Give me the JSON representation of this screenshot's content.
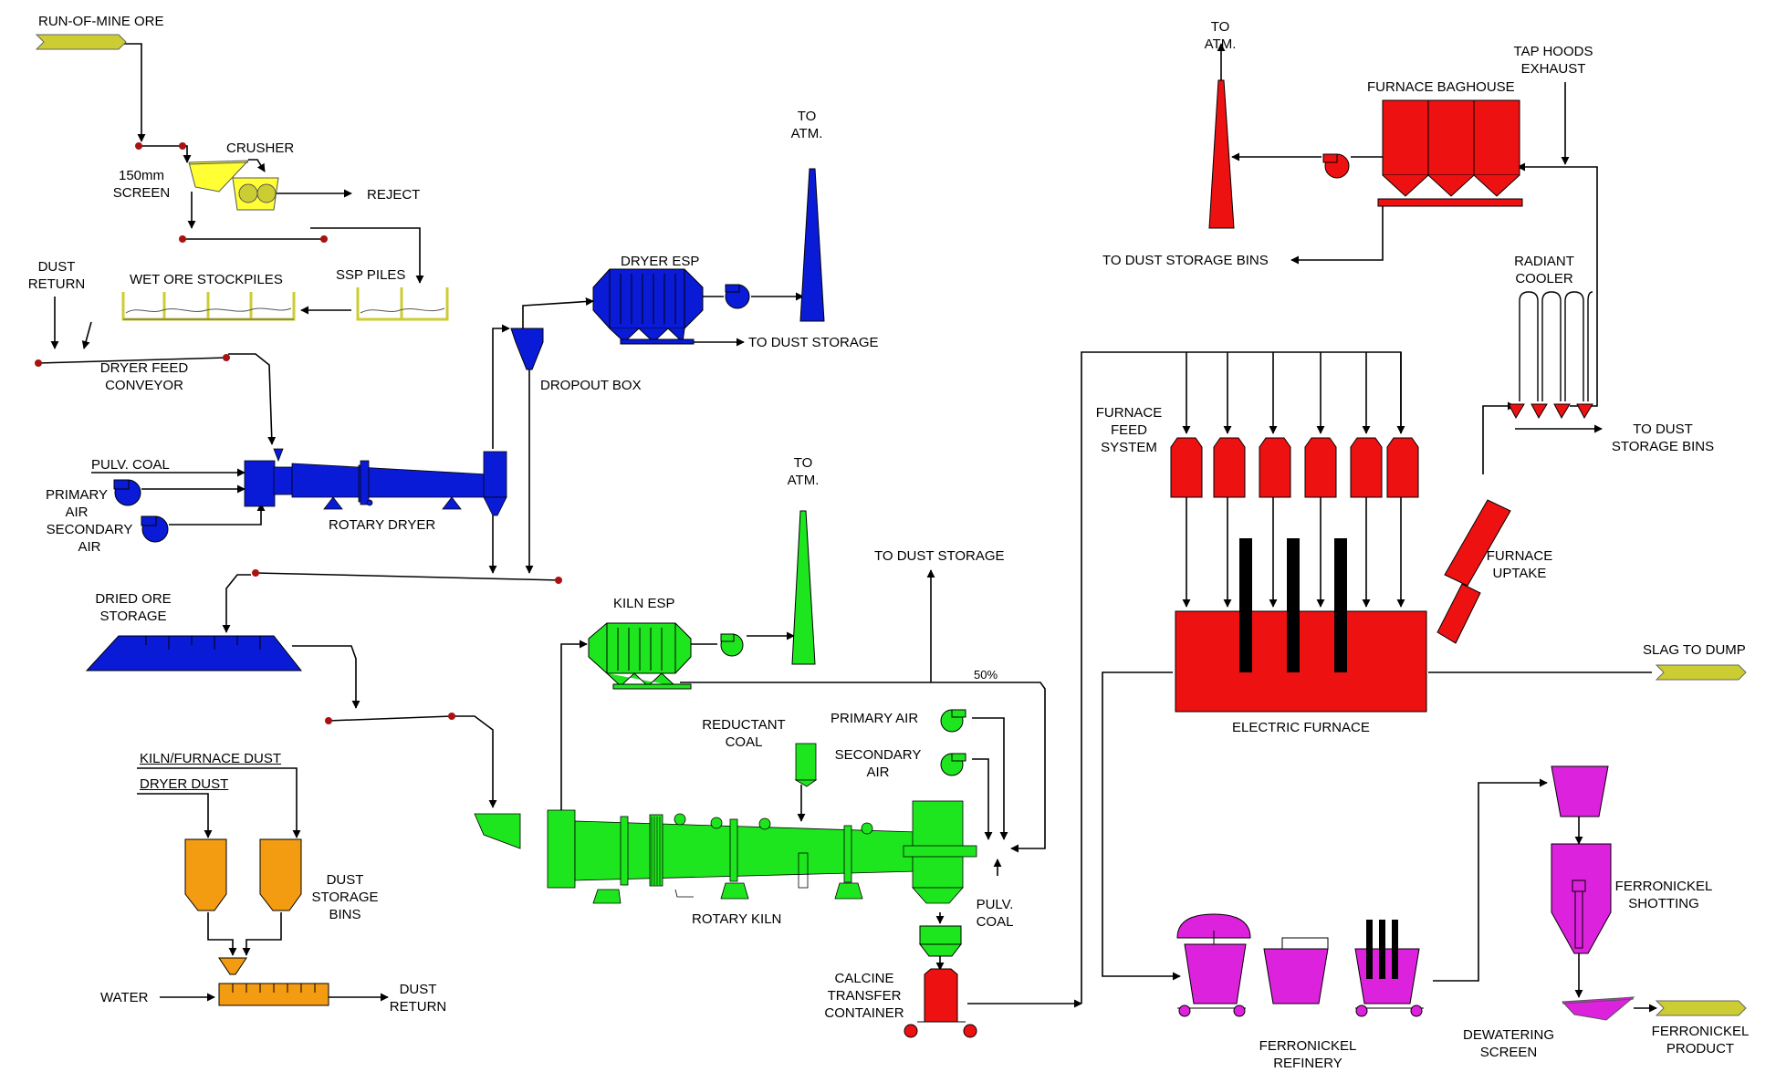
{
  "colors": {
    "dryer_blue": "#0a1bd8",
    "kiln_green": "#1ee61e",
    "furnace_red": "#ee1111",
    "dust_orange": "#f39c12",
    "refinery_magenta": "#dd22dd",
    "ore_khaki": "#cccc33",
    "screen_yellow": "#ffff33",
    "line_black": "#000000"
  },
  "labels": {
    "run_of_mine_ore": "RUN-OF-MINE ORE",
    "crusher": "CRUSHER",
    "screen_150mm": [
      "150mm",
      "SCREEN"
    ],
    "reject": "REJECT",
    "dust_return_top": [
      "DUST",
      "RETURN"
    ],
    "wet_ore_stockpiles": "WET ORE STOCKPILES",
    "ssp_piles": "SSP PILES",
    "dryer_feed_conveyor": [
      "DRYER FEED",
      "CONVEYOR"
    ],
    "pulv_coal_dryer": "PULV. COAL",
    "primary_air_dryer": [
      "PRIMARY",
      "AIR"
    ],
    "secondary_air_dryer": [
      "SECONDARY",
      "AIR"
    ],
    "rotary_dryer": "ROTARY DRYER",
    "dropout_box": "DROPOUT BOX",
    "dryer_esp": "DRYER ESP",
    "to_atm_dryer": [
      "TO",
      "ATM."
    ],
    "to_dust_storage_dryer": "TO DUST STORAGE",
    "dried_ore_storage": [
      "DRIED ORE",
      "STORAGE"
    ],
    "kiln_furnace_dust": "KILN/FURNACE DUST",
    "dryer_dust": "DRYER DUST",
    "dust_storage_bins": [
      "DUST",
      "STORAGE",
      "BINS"
    ],
    "water": "WATER",
    "dust_return_bottom": [
      "DUST",
      "RETURN"
    ],
    "kiln_esp": "KILN ESP",
    "to_atm_kiln": [
      "TO",
      "ATM."
    ],
    "to_dust_storage_kiln": "TO DUST STORAGE",
    "fifty_percent": "50%",
    "reductant_coal": [
      "REDUCTANT",
      "COAL"
    ],
    "primary_air_kiln": "PRIMARY AIR",
    "secondary_air_kiln": [
      "SECONDARY",
      "AIR"
    ],
    "rotary_kiln": "ROTARY KILN",
    "pulv_coal_kiln": [
      "PULV.",
      "COAL"
    ],
    "calcine_transfer_container": [
      "CALCINE",
      "TRANSFER",
      "CONTAINER"
    ],
    "to_atm_furnace": [
      "TO",
      "ATM."
    ],
    "furnace_baghouse": "FURNACE BAGHOUSE",
    "tap_hoods_exhaust": [
      "TAP HOODS",
      "EXHAUST"
    ],
    "to_dust_storage_bins_top": "TO DUST STORAGE BINS",
    "radiant_cooler": [
      "RADIANT",
      "COOLER"
    ],
    "furnace_feed_system": [
      "FURNACE",
      "FEED",
      "SYSTEM"
    ],
    "to_dust_storage_bins_right": [
      "TO DUST",
      "STORAGE BINS"
    ],
    "furnace_uptake": [
      "FURNACE",
      "UPTAKE"
    ],
    "electric_furnace": "ELECTRIC FURNACE",
    "slag_to_dump": "SLAG TO DUMP",
    "ferronickel_refinery": [
      "FERRONICKEL",
      "REFINERY"
    ],
    "ferronickel_shotting": [
      "FERRONICKEL",
      "SHOTTING"
    ],
    "dewatering_screen": [
      "DEWATERING",
      "SCREEN"
    ],
    "ferronickel_product": [
      "FERRONICKEL",
      "PRODUCT"
    ]
  }
}
